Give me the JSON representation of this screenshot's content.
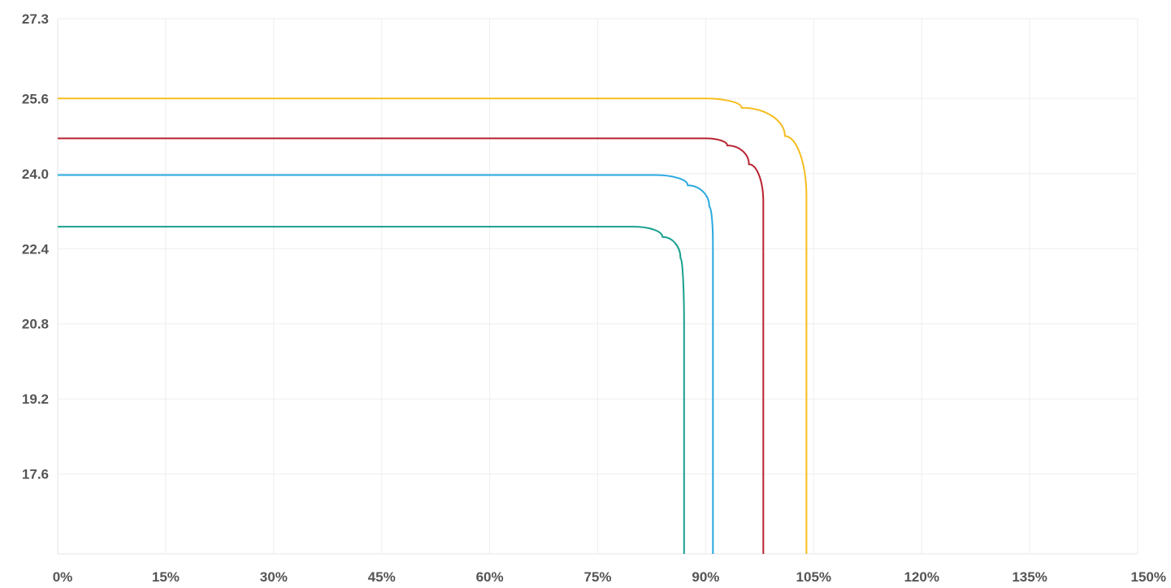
{
  "chart_data": {
    "type": "line",
    "title": "",
    "xlabel": "",
    "ylabel": "",
    "xlim": [
      0,
      150
    ],
    "ylim": [
      15.9,
      27.3
    ],
    "x_ticks": [
      {
        "value": 0,
        "label": "0%"
      },
      {
        "value": 15,
        "label": "15%"
      },
      {
        "value": 30,
        "label": "30%"
      },
      {
        "value": 45,
        "label": "45%"
      },
      {
        "value": 60,
        "label": "60%"
      },
      {
        "value": 75,
        "label": "75%"
      },
      {
        "value": 90,
        "label": "90%"
      },
      {
        "value": 105,
        "label": "105%"
      },
      {
        "value": 120,
        "label": "120%"
      },
      {
        "value": 135,
        "label": "135%"
      },
      {
        "value": 150,
        "label": "150%"
      }
    ],
    "y_ticks": [
      {
        "value": 27.3,
        "label": "27.3"
      },
      {
        "value": 25.6,
        "label": "25.6"
      },
      {
        "value": 24.0,
        "label": "24.0"
      },
      {
        "value": 22.4,
        "label": "22.4"
      },
      {
        "value": 20.8,
        "label": "20.8"
      },
      {
        "value": 19.2,
        "label": "19.2"
      },
      {
        "value": 17.6,
        "label": "17.6"
      }
    ],
    "grid": true,
    "legend": "none",
    "series": [
      {
        "color": "#f5bd1f",
        "x": [
          0,
          90,
          95,
          101,
          104,
          104
        ],
        "y": [
          25.6,
          25.6,
          25.4,
          24.8,
          23.5,
          15.9
        ]
      },
      {
        "color": "#b8232f",
        "x": [
          0,
          90,
          93,
          96,
          98,
          98
        ],
        "y": [
          24.75,
          24.75,
          24.6,
          24.2,
          23.4,
          15.9
        ]
      },
      {
        "color": "#29a9e0",
        "x": [
          0,
          83,
          87.5,
          90.5,
          91,
          91
        ],
        "y": [
          23.97,
          23.97,
          23.75,
          23.3,
          22.5,
          15.9
        ]
      },
      {
        "color": "#1aa08f",
        "x": [
          0,
          80,
          84,
          86.5,
          87,
          87
        ],
        "y": [
          22.87,
          22.87,
          22.65,
          22.2,
          20.8,
          15.9
        ]
      }
    ]
  }
}
